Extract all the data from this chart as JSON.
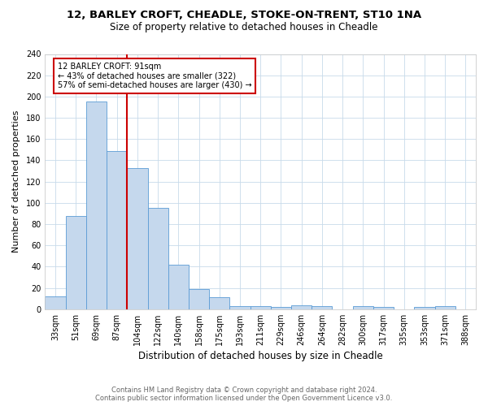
{
  "title1": "12, BARLEY CROFT, CHEADLE, STOKE-ON-TRENT, ST10 1NA",
  "title2": "Size of property relative to detached houses in Cheadle",
  "xlabel": "Distribution of detached houses by size in Cheadle",
  "ylabel": "Number of detached properties",
  "categories": [
    "33sqm",
    "51sqm",
    "69sqm",
    "87sqm",
    "104sqm",
    "122sqm",
    "140sqm",
    "158sqm",
    "175sqm",
    "193sqm",
    "211sqm",
    "229sqm",
    "246sqm",
    "264sqm",
    "282sqm",
    "300sqm",
    "317sqm",
    "335sqm",
    "353sqm",
    "371sqm",
    "388sqm"
  ],
  "values": [
    12,
    88,
    195,
    149,
    133,
    95,
    42,
    19,
    11,
    3,
    3,
    2,
    4,
    3,
    0,
    3,
    2,
    0,
    2,
    3,
    0
  ],
  "bar_color": "#c5d8ed",
  "bar_edge_color": "#5b9bd5",
  "property_line_idx": 3,
  "property_line_color": "#cc0000",
  "annotation_text": "12 BARLEY CROFT: 91sqm\n← 43% of detached houses are smaller (322)\n57% of semi-detached houses are larger (430) →",
  "annotation_box_color": "#cc0000",
  "ylim": [
    0,
    240
  ],
  "yticks": [
    0,
    20,
    40,
    60,
    80,
    100,
    120,
    140,
    160,
    180,
    200,
    220,
    240
  ],
  "footer1": "Contains HM Land Registry data © Crown copyright and database right 2024.",
  "footer2": "Contains public sector information licensed under the Open Government Licence v3.0.",
  "bg_color": "#ffffff",
  "grid_color": "#c8daea",
  "title1_fontsize": 9.5,
  "title2_fontsize": 8.5,
  "xlabel_fontsize": 8.5,
  "ylabel_fontsize": 8,
  "tick_fontsize": 7,
  "footer_fontsize": 6,
  "ann_fontsize": 7
}
